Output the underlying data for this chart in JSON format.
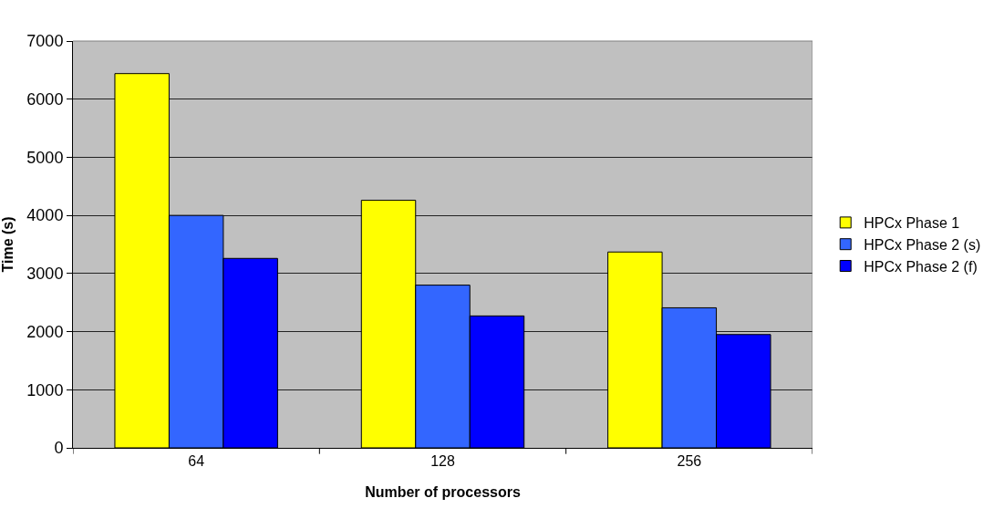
{
  "chart_data": {
    "type": "bar",
    "xlabel": "Number of processors",
    "ylabel": "Time (s)",
    "categories": [
      "64",
      "128",
      "256"
    ],
    "series": [
      {
        "name": "HPCx Phase 1",
        "color": "#ffff00",
        "values": [
          6440,
          4260,
          3370
        ]
      },
      {
        "name": "HPCx Phase 2 (s)",
        "color": "#3366ff",
        "values": [
          4000,
          2800,
          2410
        ]
      },
      {
        "name": "HPCx Phase 2 (f)",
        "color": "#0000ff",
        "values": [
          3260,
          2270,
          1950
        ]
      }
    ],
    "ylim": [
      0,
      7000
    ],
    "yticks": [
      0,
      1000,
      2000,
      3000,
      4000,
      5000,
      6000,
      7000
    ],
    "grid": "y",
    "legend": "right"
  }
}
